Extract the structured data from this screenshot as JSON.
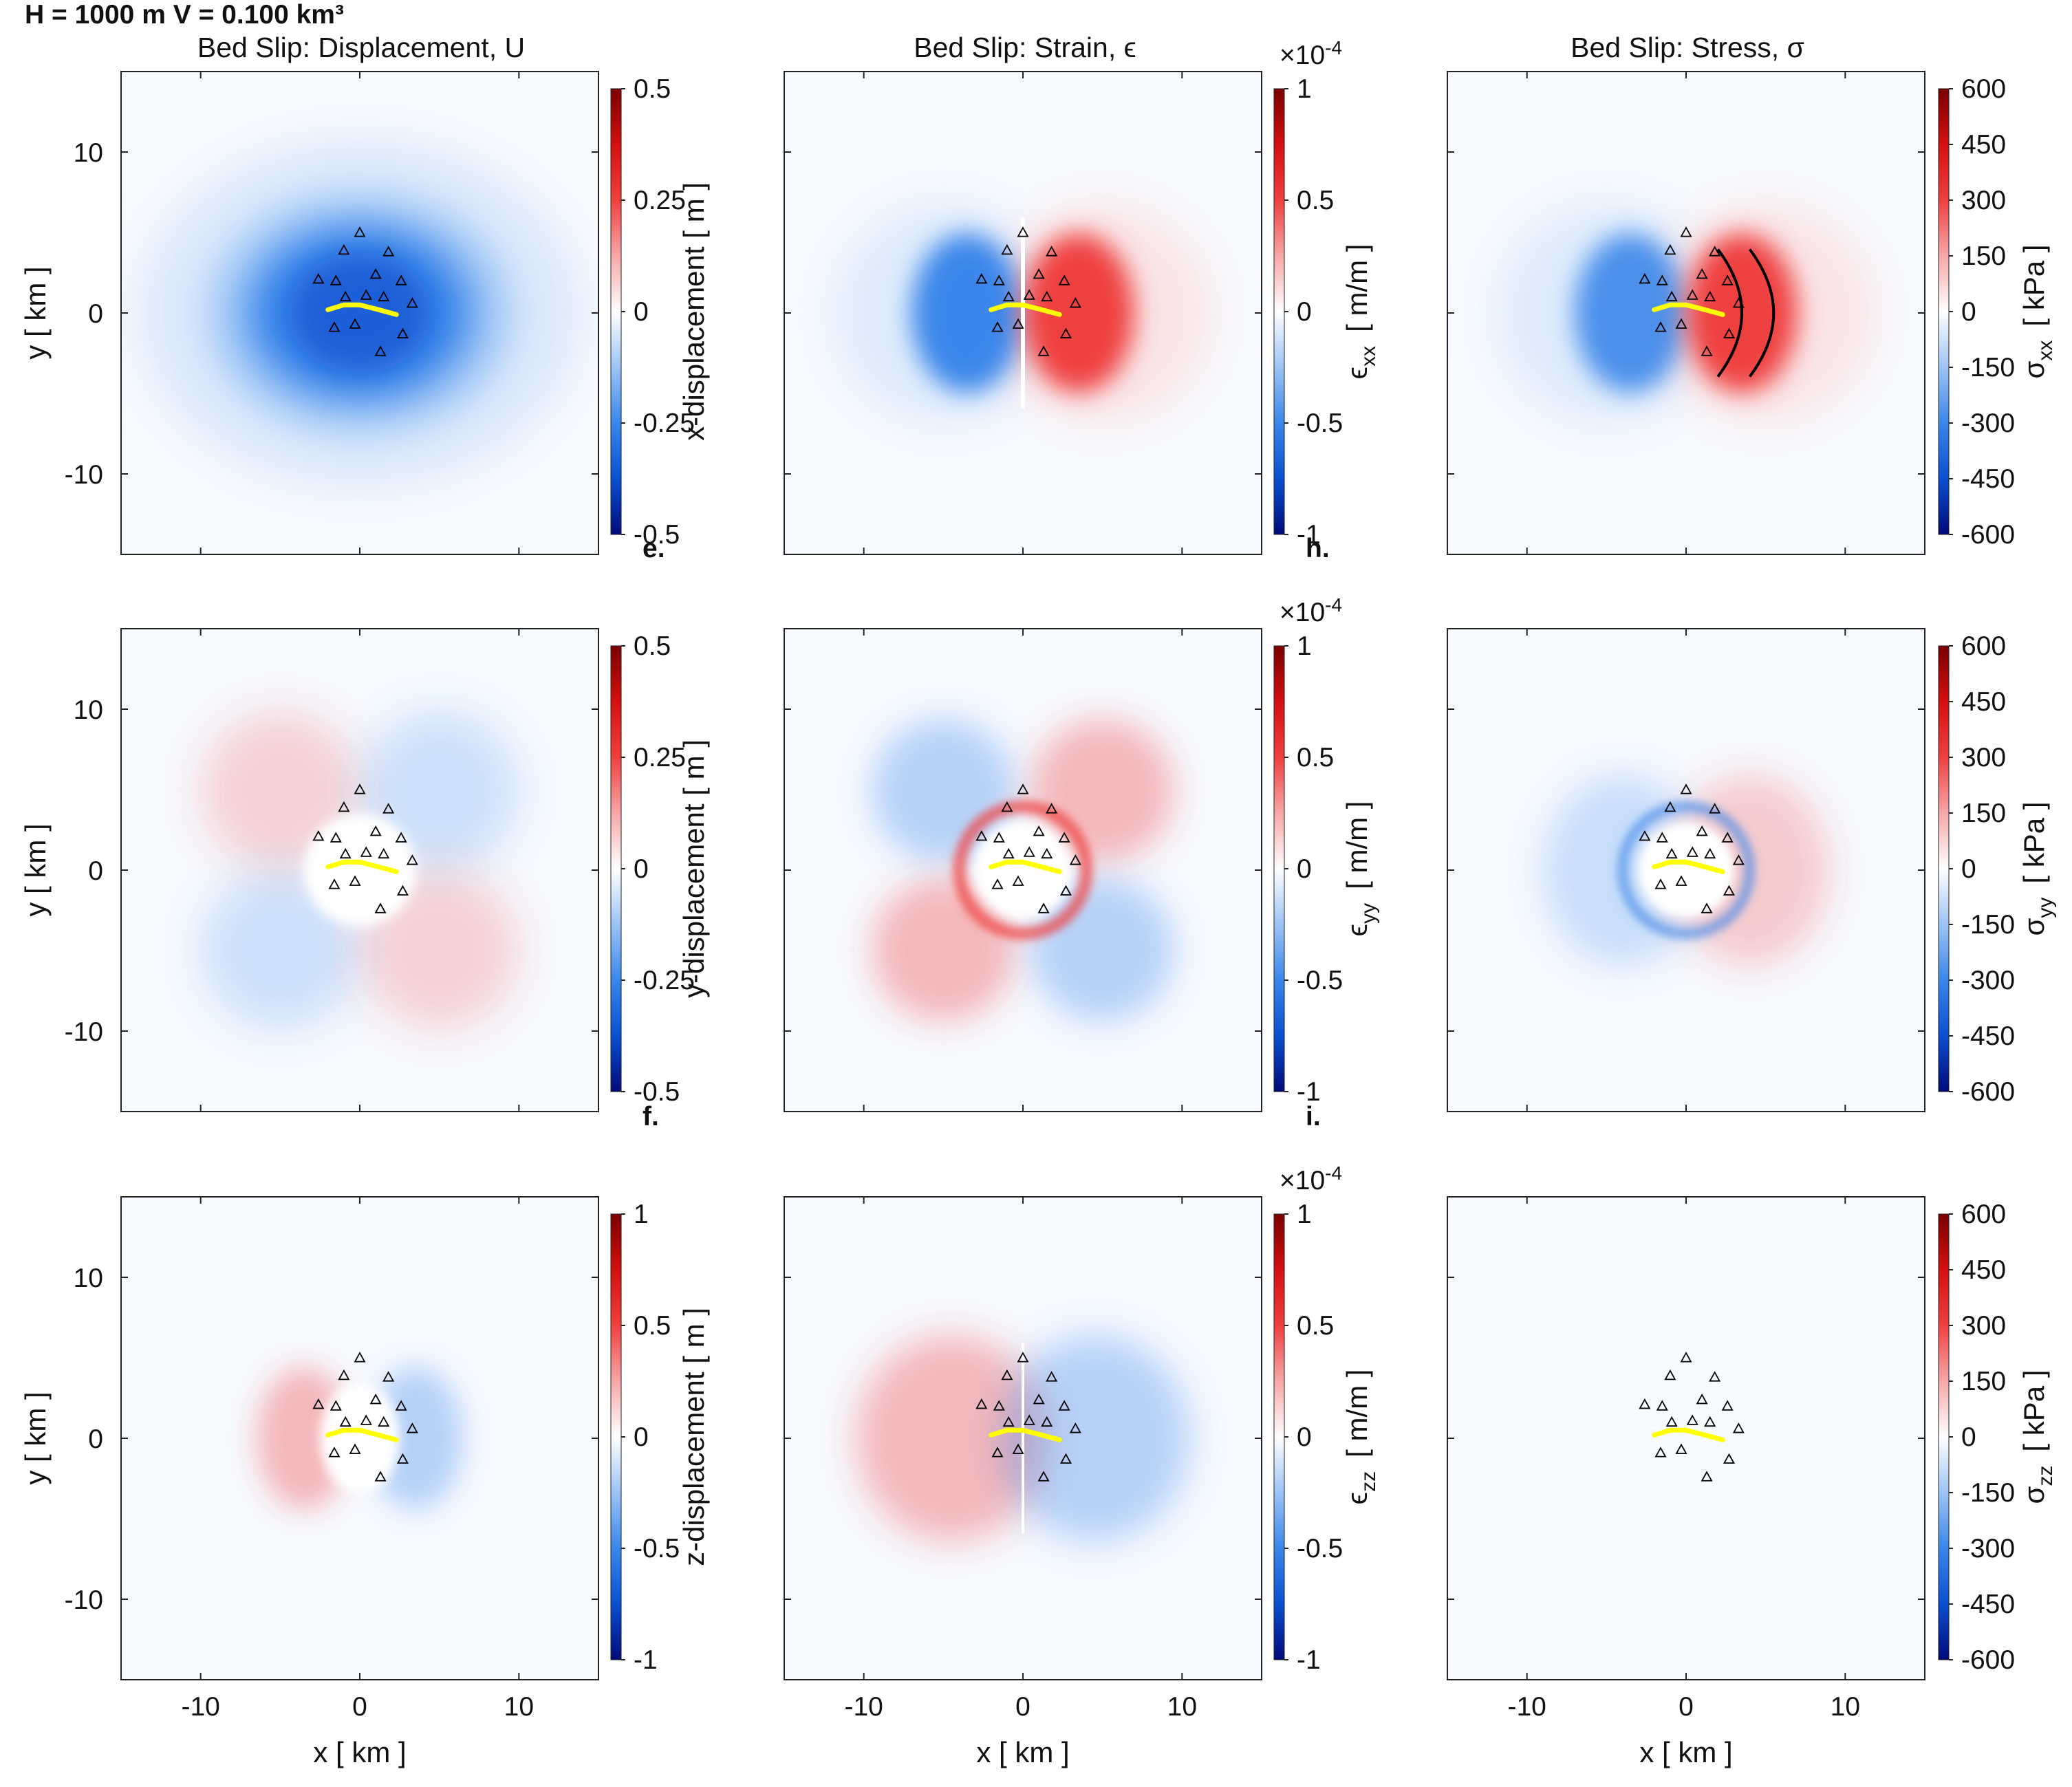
{
  "header": {
    "text": "H = 1000 m   V = 0.100 km³"
  },
  "panel_letters": {
    "e": "e.",
    "f": "f.",
    "h": "h.",
    "i": "i."
  },
  "col_titles": [
    "Bed Slip: Displacement, U",
    "Bed Slip: Strain, ϵ",
    "Bed Slip: Stress, σ"
  ],
  "axes": {
    "xlabel": "x [ km ]",
    "ylabel": "y [ km ]",
    "xticks": [
      "-10",
      "0",
      "10"
    ],
    "yticks": [
      "10",
      "0",
      "-10"
    ],
    "xlim": [
      -15,
      15
    ],
    "ylim": [
      -15,
      15
    ]
  },
  "colorbar_labels": {
    "disp": [
      "x-displacement  [ m ]",
      "y-displacement  [ m ]",
      "z-displacement  [ m ]"
    ],
    "strain_sym": "ϵ",
    "strain_subs": [
      "xx",
      "yy",
      "zz"
    ],
    "strain_unit": "[ m/m ]",
    "stress_sym": "σ",
    "stress_subs": [
      "xx",
      "yy",
      "zz"
    ],
    "stress_unit": "[ kPa ]",
    "multiplier_base": "×10",
    "multiplier_exp": "-4"
  },
  "colorbar_ticks": {
    "disp_xy": [
      "0.5",
      "0.25",
      "0",
      "-0.25",
      "-0.5"
    ],
    "disp_z": [
      "1",
      "0.5",
      "0",
      "-0.5",
      "-1"
    ],
    "strain": [
      "1",
      "0.5",
      "0",
      "-0.5",
      "-1"
    ],
    "stress": [
      "600",
      "450",
      "300",
      "150",
      "0",
      "-150",
      "-300",
      "-450",
      "-600"
    ]
  },
  "colors": {
    "cmap": [
      "#000a7a",
      "#0a4fd0",
      "#3a86ea",
      "#9cc4f5",
      "#ffffff",
      "#f7a7a7",
      "#ef4040",
      "#d40f0f",
      "#7a0000"
    ],
    "trace": "#ffff00",
    "station": "#000000"
  },
  "chart_data": {
    "type": "heatmap",
    "grid": "3x3 small multiples",
    "colormap": "diverging blue-white-red",
    "clim": {
      "x_displacement_m": [
        -0.5,
        0.5
      ],
      "y_displacement_m": [
        -0.5,
        0.5
      ],
      "z_displacement_m": [
        -1,
        1
      ],
      "strain_m_per_m": [
        -0.0001,
        0.0001
      ],
      "stress_kPa": [
        -600,
        600
      ]
    },
    "trace_km": {
      "x": [
        -2.0,
        -1.0,
        0.0,
        1.0,
        2.3
      ],
      "y": [
        0.2,
        0.5,
        0.5,
        0.25,
        -0.1
      ]
    },
    "stations_km": {
      "x": [
        0.0,
        -1.0,
        1.8,
        -2.6,
        -1.5,
        1.0,
        2.6,
        -0.9,
        0.4,
        1.5,
        3.3,
        -1.6,
        -0.3,
        2.7,
        1.3
      ],
      "y": [
        5.0,
        3.9,
        3.8,
        2.1,
        2.0,
        2.4,
        2.0,
        1.0,
        1.1,
        1.0,
        0.6,
        -0.9,
        -0.7,
        -1.3,
        -2.4
      ]
    }
  }
}
